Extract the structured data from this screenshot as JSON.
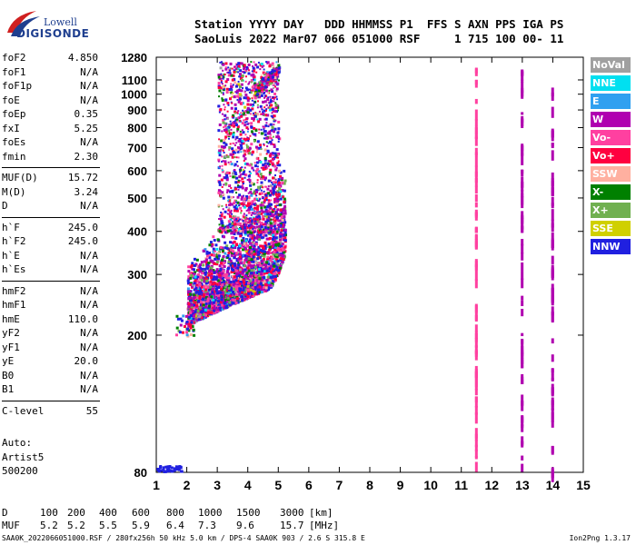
{
  "logo": {
    "brand": "Lowell",
    "product": "DIGISONDE"
  },
  "header": {
    "line1": "Station YYYY DAY   DDD HHMMSS P1  FFS S AXN PPS IGA PS",
    "line2": "SaoLuis 2022 Mar07 066 051000 RSF     1 715 100 00- 11"
  },
  "params": {
    "group1": [
      {
        "label": "foF2",
        "value": "4.850"
      },
      {
        "label": "foF1",
        "value": "N/A"
      },
      {
        "label": "foF1p",
        "value": "N/A"
      },
      {
        "label": "foE",
        "value": "N/A"
      },
      {
        "label": "foEp",
        "value": "0.35"
      },
      {
        "label": "fxI",
        "value": "5.25"
      },
      {
        "label": "foEs",
        "value": "N/A"
      },
      {
        "label": "fmin",
        "value": "2.30"
      }
    ],
    "group2": [
      {
        "label": "MUF(D)",
        "value": "15.72"
      },
      {
        "label": "M(D)",
        "value": "3.24"
      },
      {
        "label": "D",
        "value": "N/A"
      }
    ],
    "group3": [
      {
        "label": "h`F",
        "value": "245.0"
      },
      {
        "label": "h`F2",
        "value": "245.0"
      },
      {
        "label": "h`E",
        "value": "N/A"
      },
      {
        "label": "h`Es",
        "value": "N/A"
      }
    ],
    "group4": [
      {
        "label": "hmF2",
        "value": "N/A"
      },
      {
        "label": "hmF1",
        "value": "N/A"
      },
      {
        "label": "hmE",
        "value": "110.0"
      },
      {
        "label": "yF2",
        "value": "N/A"
      },
      {
        "label": "yF1",
        "value": "N/A"
      },
      {
        "label": "yE",
        "value": "20.0"
      },
      {
        "label": "B0",
        "value": "N/A"
      },
      {
        "label": "B1",
        "value": "N/A"
      }
    ],
    "group5": [
      {
        "label": "C-level",
        "value": "55"
      }
    ]
  },
  "auto": {
    "line1": "Auto:",
    "line2": "Artist5",
    "line3": "500200"
  },
  "dm_table": {
    "d_label": "D",
    "muf_label": "MUF",
    "d_values": [
      "100",
      "200",
      "400",
      "600",
      "800",
      "1000",
      "1500",
      "3000"
    ],
    "muf_values": [
      "5.2",
      "5.2",
      "5.5",
      "5.9",
      "6.4",
      "7.3",
      "9.6",
      "15.7"
    ],
    "d_unit": "[km]",
    "muf_unit": "[MHz]"
  },
  "footer": {
    "left": "SAA0K_2022066051000.RSF / 280fx256h 50 kHz 5.0 km / DPS-4 SAA0K 903 / 2.6 S 315.8 E",
    "right": "Ion2Png 1.3.17"
  },
  "legend": [
    {
      "label": "NoVal",
      "color": "#a0a0a0"
    },
    {
      "label": "NNE",
      "color": "#00e0f0"
    },
    {
      "label": "E",
      "color": "#30a0f0"
    },
    {
      "label": "W",
      "color": "#b000b0"
    },
    {
      "label": "Vo-",
      "color": "#ff40a0"
    },
    {
      "label": "Vo+",
      "color": "#ff0040"
    },
    {
      "label": "SSW",
      "color": "#ffb0a0"
    },
    {
      "label": "X-",
      "color": "#008000"
    },
    {
      "label": "X+",
      "color": "#70b050"
    },
    {
      "label": "SSE",
      "color": "#d0d000"
    },
    {
      "label": "NNW",
      "color": "#2020e0"
    }
  ],
  "chart_data": {
    "type": "scatter",
    "xlabel": "",
    "ylabel": "",
    "xlim": [
      1,
      15
    ],
    "ylim": [
      80,
      1280
    ],
    "x_ticks": [
      1,
      2,
      3,
      4,
      5,
      6,
      7,
      8,
      9,
      10,
      11,
      12,
      13,
      14,
      15
    ],
    "y_ticks": [
      80,
      200,
      300,
      400,
      500,
      600,
      700,
      800,
      900,
      1000,
      1100,
      1280
    ],
    "y_scale": "log",
    "trace": [
      [
        2.0,
        215
      ],
      [
        2.2,
        228
      ],
      [
        2.5,
        238
      ],
      [
        2.8,
        245
      ],
      [
        3.0,
        252
      ],
      [
        3.3,
        258
      ],
      [
        3.6,
        265
      ],
      [
        3.9,
        275
      ],
      [
        4.2,
        290
      ],
      [
        4.5,
        310
      ],
      [
        4.7,
        330
      ],
      [
        4.85,
        360
      ],
      [
        5.0,
        400
      ],
      [
        5.1,
        420
      ],
      [
        5.2,
        440
      ]
    ],
    "vertical_bars": [
      {
        "x": 11.45,
        "y0": 80,
        "y1": 1280,
        "color": "#ff40a0"
      },
      {
        "x": 12.95,
        "y0": 80,
        "y1": 1280,
        "color": "#b000b0"
      },
      {
        "x": 13.95,
        "y0": 80,
        "y1": 1080,
        "color": "#b000b0"
      }
    ]
  }
}
